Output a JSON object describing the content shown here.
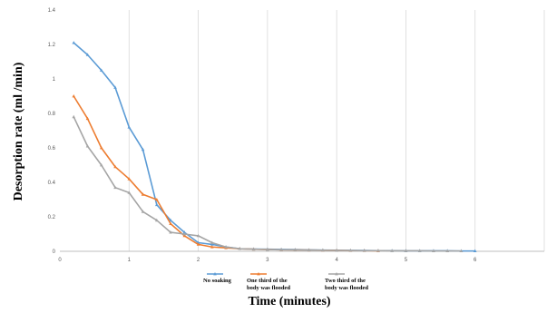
{
  "chart_data": {
    "type": "line",
    "title": "",
    "xlabel": "Time (minutes)",
    "ylabel": "Desorption rate (ml /min)",
    "xlim": [
      0,
      7
    ],
    "ylim": [
      0,
      1.4
    ],
    "x_ticks": [
      "0",
      "1",
      "2",
      "3",
      "4",
      "5",
      "6"
    ],
    "y_ticks": [
      "0",
      "0.2",
      "0.4",
      "0.6",
      "0.8",
      "1",
      "1.2",
      "1.4"
    ],
    "grid": "vertical",
    "legend_position": "bottom",
    "series": [
      {
        "name": "No soaking",
        "color": "#5b9bd5",
        "marker": "triangle",
        "x": [
          0.2,
          0.4,
          0.6,
          0.8,
          1.0,
          1.2,
          1.4,
          1.6,
          1.8,
          2.0,
          2.2,
          2.4,
          2.6,
          2.8,
          3.0,
          3.2,
          3.4,
          3.6,
          3.8,
          4.0,
          4.2,
          4.4,
          4.6,
          4.8,
          5.0,
          5.2,
          5.4,
          5.6,
          5.8,
          6.0
        ],
        "values": [
          1.21,
          1.14,
          1.05,
          0.95,
          0.72,
          0.59,
          0.27,
          0.18,
          0.11,
          0.05,
          0.04,
          0.025,
          0.015,
          0.013,
          0.012,
          0.011,
          0.01,
          0.008,
          0.007,
          0.006,
          0.005,
          0.005,
          0.004,
          0.004,
          0.003,
          0.003,
          0.003,
          0.003,
          0.002,
          0.002
        ]
      },
      {
        "name": "One third of the body was flooded",
        "color": "#ed7d31",
        "marker": "triangle",
        "x": [
          0.2,
          0.4,
          0.6,
          0.8,
          1.0,
          1.2,
          1.4,
          1.6,
          1.8,
          2.0,
          2.2,
          2.4,
          2.6,
          2.8,
          3.0,
          3.2,
          3.4,
          3.6,
          3.8,
          4.0,
          4.2,
          4.4,
          4.6
        ],
        "values": [
          0.9,
          0.77,
          0.6,
          0.49,
          0.42,
          0.33,
          0.3,
          0.16,
          0.09,
          0.04,
          0.025,
          0.02,
          0.015,
          0.012,
          0.01,
          0.009,
          0.008,
          0.007,
          0.006,
          0.005,
          0.004,
          0.004,
          0.003
        ]
      },
      {
        "name": "Two third of the body was flooded",
        "color": "#a5a5a5",
        "marker": "triangle",
        "x": [
          0.2,
          0.4,
          0.6,
          0.8,
          1.0,
          1.2,
          1.4,
          1.6,
          1.8,
          2.0,
          2.2,
          2.4,
          2.6,
          2.8,
          3.0,
          3.2,
          3.4,
          3.6,
          3.8,
          4.0,
          4.2,
          4.4,
          4.6,
          4.8,
          5.0,
          5.2,
          5.4,
          5.6,
          5.8
        ],
        "values": [
          0.78,
          0.61,
          0.5,
          0.37,
          0.34,
          0.23,
          0.18,
          0.11,
          0.1,
          0.09,
          0.05,
          0.025,
          0.015,
          0.012,
          0.01,
          0.009,
          0.008,
          0.007,
          0.006,
          0.005,
          0.005,
          0.004,
          0.004,
          0.003,
          0.003,
          0.003,
          0.002,
          0.002,
          0.002
        ]
      }
    ]
  }
}
